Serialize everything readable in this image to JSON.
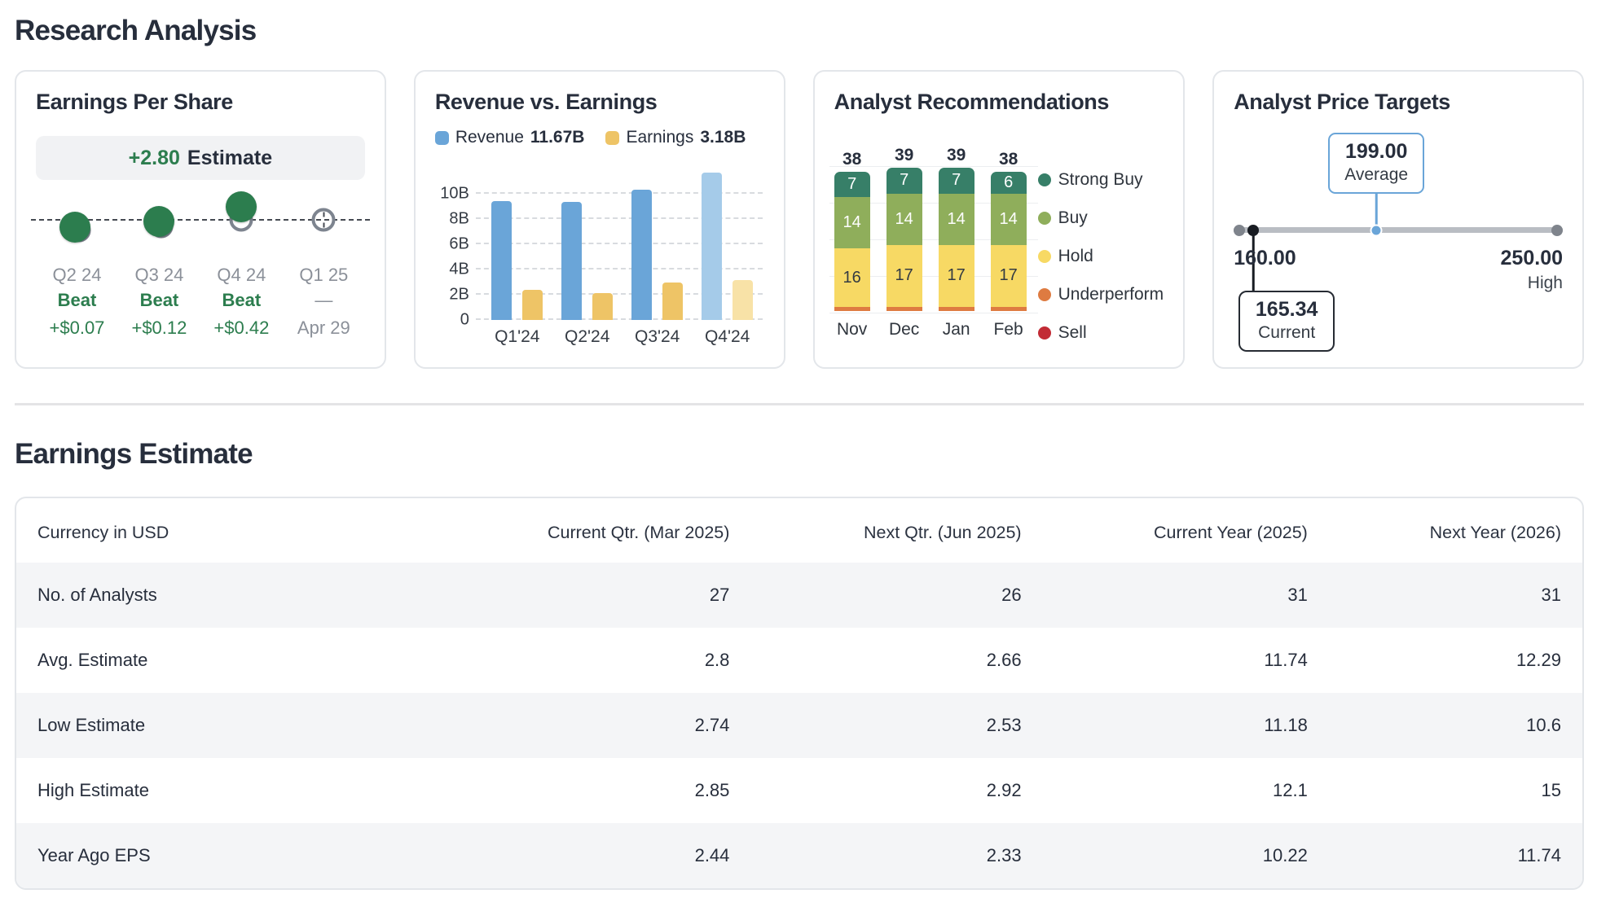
{
  "page": {
    "title": "Research Analysis",
    "earnings_section_title": "Earnings Estimate"
  },
  "colors": {
    "green": "#2c7d4e",
    "strong_buy": "#377f68",
    "buy": "#8fae5b",
    "hold": "#f7d964",
    "underperform": "#de7b41",
    "sell": "#c22b35",
    "revenue_blue": "#6aa5d8",
    "revenue_blue_light": "#a5cbe9",
    "earnings_gold": "#eec466",
    "earnings_gold_light": "#f8e2a7",
    "target_blue": "#6aa5d8"
  },
  "eps_card": {
    "title": "Earnings Per Share",
    "estimate_value": "+2.80",
    "estimate_label": "Estimate",
    "quarters": [
      {
        "period": "Q2 24",
        "status": "Beat",
        "delta": "+$0.07"
      },
      {
        "period": "Q3 24",
        "status": "Beat",
        "delta": "+$0.12"
      },
      {
        "period": "Q4 24",
        "status": "Beat",
        "delta": "+$0.42"
      },
      {
        "period": "Q1 25",
        "status": "—",
        "delta": "Apr 29",
        "upcoming": true
      }
    ]
  },
  "revenue_card": {
    "title": "Revenue vs. Earnings",
    "legend": [
      {
        "label": "Revenue",
        "value": "11.67B"
      },
      {
        "label": "Earnings",
        "value": "3.18B"
      }
    ]
  },
  "recommendations_card": {
    "title": "Analyst Recommendations",
    "legend": [
      {
        "label": "Strong Buy",
        "key": "strong_buy"
      },
      {
        "label": "Buy",
        "key": "buy"
      },
      {
        "label": "Hold",
        "key": "hold"
      },
      {
        "label": "Underperform",
        "key": "underperform"
      },
      {
        "label": "Sell",
        "key": "sell"
      }
    ]
  },
  "price_targets_card": {
    "title": "Analyst Price Targets",
    "average": {
      "value": "199.00",
      "label": "Average"
    },
    "low": {
      "value": "160.00"
    },
    "high": {
      "value": "250.00",
      "label": "High"
    },
    "current": {
      "value": "165.34",
      "label": "Current"
    }
  },
  "table": {
    "columns": [
      "Currency in USD",
      "Current Qtr. (Mar 2025)",
      "Next Qtr. (Jun 2025)",
      "Current Year (2025)",
      "Next Year (2026)"
    ],
    "rows": [
      {
        "label": "No. of Analysts",
        "values": [
          "27",
          "26",
          "31",
          "31"
        ]
      },
      {
        "label": "Avg. Estimate",
        "values": [
          "2.8",
          "2.66",
          "11.74",
          "12.29"
        ]
      },
      {
        "label": "Low Estimate",
        "values": [
          "2.74",
          "2.53",
          "11.18",
          "10.6"
        ]
      },
      {
        "label": "High Estimate",
        "values": [
          "2.85",
          "2.92",
          "12.1",
          "15"
        ]
      },
      {
        "label": "Year Ago EPS",
        "values": [
          "2.44",
          "2.33",
          "10.22",
          "11.74"
        ]
      }
    ]
  },
  "chart_data": [
    {
      "type": "bar",
      "title": "Revenue vs. Earnings",
      "categories": [
        "Q1'24",
        "Q2'24",
        "Q3'24",
        "Q4'24"
      ],
      "series": [
        {
          "name": "Revenue",
          "values": [
            9.4,
            9.35,
            10.3,
            11.67
          ]
        },
        {
          "name": "Earnings",
          "values": [
            2.4,
            2.15,
            2.95,
            3.18
          ]
        }
      ],
      "unit": "billions USD",
      "ylim": [
        0,
        12
      ],
      "yticks": [
        {
          "value": 0,
          "label": "0"
        },
        {
          "value": 2,
          "label": "2B"
        },
        {
          "value": 4,
          "label": "4B"
        },
        {
          "value": 6,
          "label": "6B"
        },
        {
          "value": 8,
          "label": "8B"
        },
        {
          "value": 10,
          "label": "10B"
        }
      ],
      "grid": true,
      "legend_position": "top",
      "note": "latest quarter shown in lighter shade"
    },
    {
      "type": "bar",
      "subtype": "stacked",
      "title": "Analyst Recommendations",
      "categories": [
        "Nov",
        "Dec",
        "Jan",
        "Feb"
      ],
      "series": [
        {
          "name": "Strong Buy",
          "key": "strong_buy",
          "values": [
            7,
            7,
            7,
            6
          ]
        },
        {
          "name": "Buy",
          "key": "buy",
          "values": [
            14,
            14,
            14,
            14
          ]
        },
        {
          "name": "Hold",
          "key": "hold",
          "values": [
            16,
            17,
            17,
            17
          ]
        },
        {
          "name": "Underperform",
          "key": "underperform",
          "values": [
            1,
            1,
            1,
            1
          ]
        },
        {
          "name": "Sell",
          "key": "sell",
          "values": [
            0,
            0,
            0,
            0
          ]
        }
      ],
      "totals": [
        38,
        39,
        39,
        38
      ],
      "ylim": [
        0,
        40
      ],
      "grid": true,
      "legend_position": "right"
    },
    {
      "type": "range",
      "title": "Analyst Price Targets",
      "low": 160.0,
      "high": 250.0,
      "average": 199.0,
      "current": 165.34
    },
    {
      "type": "scatter",
      "title": "Earnings Per Share beat history",
      "estimate": 2.8,
      "points": [
        {
          "period": "Q2 24",
          "result": "Beat",
          "surprise": 0.07
        },
        {
          "period": "Q3 24",
          "result": "Beat",
          "surprise": 0.12
        },
        {
          "period": "Q4 24",
          "result": "Beat",
          "surprise": 0.42
        },
        {
          "period": "Q1 25",
          "result": "—",
          "report_date": "Apr 29"
        }
      ]
    }
  ]
}
